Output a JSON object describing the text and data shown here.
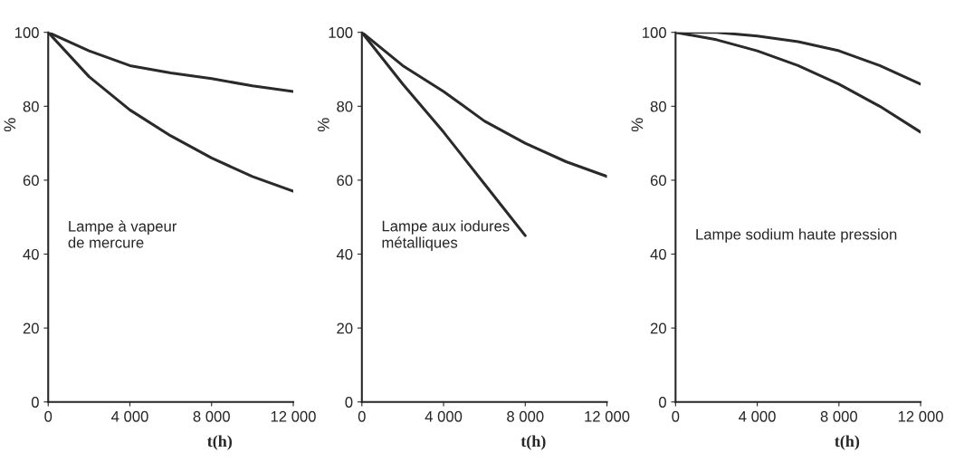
{
  "chart_data": [
    {
      "type": "line",
      "x": [
        0,
        2000,
        4000,
        6000,
        8000,
        10000,
        12000
      ],
      "xlabel": "t(h)",
      "ylabel": "%",
      "annotations": [
        "Lampe à vapeur\nde mercure"
      ],
      "xlim": [
        0,
        12000
      ],
      "ylim": [
        0,
        100
      ],
      "xticks": [
        0,
        {
          "value": 4000,
          "label": "4 000"
        },
        {
          "value": 8000,
          "label": "8 000"
        },
        {
          "value": 12000,
          "label": "12 000"
        }
      ],
      "yticks": [
        0,
        20,
        40,
        60,
        80,
        100
      ],
      "grid": false,
      "series": [
        {
          "color": "#2a2a2a",
          "values": [
            100,
            95,
            91,
            89,
            87.5,
            85.5,
            84
          ]
        },
        {
          "color": "#2a2a2a",
          "values": [
            100,
            88,
            79,
            72,
            66,
            61,
            57
          ]
        }
      ]
    },
    {
      "type": "line",
      "x": [
        0,
        2000,
        4000,
        6000,
        8000,
        10000,
        12000
      ],
      "xlabel": "t(h)",
      "ylabel": "%",
      "annotations": [
        "Lampe aux iodures\nmétalliques"
      ],
      "xlim": [
        0,
        12000
      ],
      "ylim": [
        0,
        100
      ],
      "xticks": [
        0,
        {
          "value": 4000,
          "label": "4 000"
        },
        {
          "value": 8000,
          "label": "8 000"
        },
        {
          "value": 12000,
          "label": "12 000"
        }
      ],
      "yticks": [
        0,
        20,
        40,
        60,
        80,
        100
      ],
      "grid": false,
      "series": [
        {
          "color": "#2a2a2a",
          "values": [
            100,
            91,
            84,
            76,
            70,
            65,
            61
          ]
        },
        {
          "color": "#2a2a2a",
          "values": [
            100,
            86,
            73,
            59,
            45,
            null,
            null
          ]
        }
      ]
    },
    {
      "type": "line",
      "x": [
        0,
        2000,
        4000,
        6000,
        8000,
        10000,
        12000
      ],
      "xlabel": "t(h)",
      "ylabel": "%",
      "annotations": [
        "Lampe sodium haute pression"
      ],
      "xlim": [
        0,
        12000
      ],
      "ylim": [
        0,
        100
      ],
      "xticks": [
        0,
        {
          "value": 4000,
          "label": "4 000"
        },
        {
          "value": 8000,
          "label": "8 000"
        },
        {
          "value": 12000,
          "label": "12 000"
        }
      ],
      "yticks": [
        0,
        20,
        40,
        60,
        80,
        100
      ],
      "grid": false,
      "series": [
        {
          "color": "#2a2a2a",
          "values": [
            100,
            100,
            99,
            97.5,
            95,
            91,
            86
          ]
        },
        {
          "color": "#2a2a2a",
          "values": [
            100,
            98,
            95,
            91,
            86,
            80,
            73
          ]
        }
      ]
    }
  ]
}
